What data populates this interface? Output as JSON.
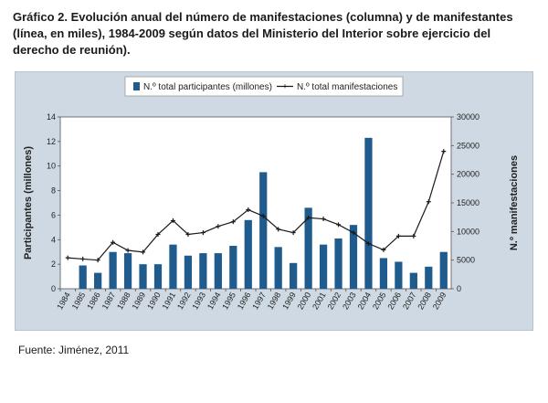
{
  "caption": "Gráfico 2. Evolución anual del número de manifestaciones (columna) y de manifestantes (línea, en miles), 1984-2009 según datos del Ministerio del Interior sobre ejercicio del derecho de reunión).",
  "source": "Fuente: Jiménez, 2011",
  "colors": {
    "bar": "#1f5b8c",
    "line": "#1a1a1a",
    "background": "#cfd9e3",
    "plot": "#ffffff"
  },
  "chart_data": {
    "type": "bar+line",
    "categories": [
      "1984",
      "1985",
      "1986",
      "1987",
      "1988",
      "1989",
      "1990",
      "1991",
      "1992",
      "1993",
      "1994",
      "1995",
      "1996",
      "1997",
      "1998",
      "1999",
      "2000",
      "2001",
      "2002",
      "2003",
      "2004",
      "2005",
      "2006",
      "2007",
      "2008",
      "2009"
    ],
    "series": [
      {
        "name": "N.º total participantes (millones)",
        "type": "bar",
        "axis": "left",
        "values": [
          0,
          1.9,
          1.3,
          3.0,
          2.9,
          2.0,
          2.0,
          3.6,
          2.7,
          2.9,
          2.9,
          3.5,
          5.6,
          9.5,
          3.4,
          2.1,
          6.6,
          3.6,
          4.1,
          5.2,
          12.3,
          2.5,
          2.2,
          1.3,
          1.8,
          3.0
        ]
      },
      {
        "name": "N.º total manifestaciones",
        "type": "line",
        "axis": "right",
        "values": [
          5400,
          5200,
          5000,
          8100,
          6700,
          6400,
          9500,
          11900,
          9500,
          9800,
          10900,
          11700,
          13800,
          12700,
          10400,
          9800,
          12400,
          12200,
          11200,
          9800,
          7900,
          6800,
          9200,
          9200,
          15200,
          24000
        ]
      }
    ],
    "ylabel": "Participantes (millones)",
    "y2label": "N.º manifestaciones",
    "ylim": [
      0,
      14
    ],
    "y2lim": [
      0,
      30000
    ],
    "yticks": [
      0,
      2,
      4,
      6,
      8,
      10,
      12,
      14
    ],
    "y2ticks": [
      0,
      5000,
      10000,
      15000,
      20000,
      25000,
      30000
    ],
    "grid": false,
    "legend": "top"
  }
}
